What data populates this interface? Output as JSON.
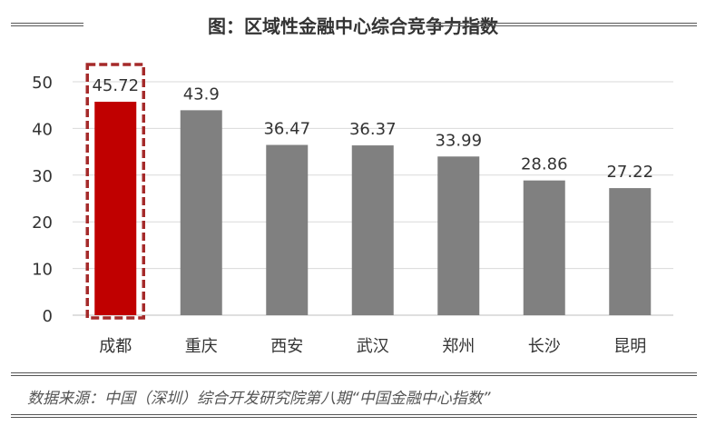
{
  "title": "图：区域性金融中心综合竞争力指数",
  "source": "数据来源：中国（深圳）综合开发研究院第八期“中国金融中心指数”",
  "colors": {
    "highlight": "#C00000",
    "bar": "#808080",
    "highlight_border": "#A52A2A",
    "grid": "#D9D9D9",
    "text": "#333333"
  },
  "chart_data": {
    "type": "bar",
    "categories": [
      "成都",
      "重庆",
      "西安",
      "武汉",
      "郑州",
      "长沙",
      "昆明"
    ],
    "values": [
      45.72,
      43.9,
      36.47,
      36.37,
      33.99,
      28.86,
      27.22
    ],
    "data_labels": [
      "45.72",
      "43.9",
      "36.47",
      "36.37",
      "33.99",
      "28.86",
      "27.22"
    ],
    "highlight_category": "成都",
    "yticks": [
      0,
      10,
      20,
      30,
      40,
      50
    ],
    "ylim": [
      0,
      50
    ],
    "grid": true,
    "legend": "none"
  }
}
